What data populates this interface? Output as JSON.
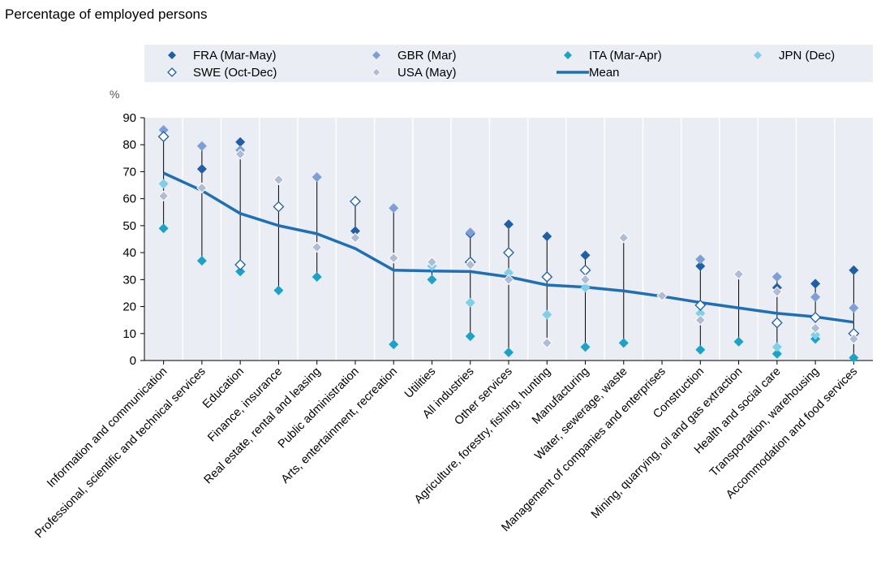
{
  "subtitle": "Percentage of employed persons",
  "chart_data": {
    "type": "scatter",
    "title": "",
    "ylabel": "%",
    "xlabel": "",
    "ylim": [
      0,
      90
    ],
    "yticks": [
      0,
      10,
      20,
      30,
      40,
      50,
      60,
      70,
      80,
      90
    ],
    "grid": "vertical",
    "legend_position": "top",
    "categories": [
      "Information and communication",
      "Professional, scientific and technical services",
      "Education",
      "Finance, insurance",
      "Real estate, rental and leasing",
      "Public administration",
      "Arts, entertainment, recreation",
      "Utilities",
      "All industries",
      "Other services",
      "Agriculture, forestry, fishing, hunting",
      "Manufacturing",
      "Water, sewerage, waste",
      "Management of companies and enterprises",
      "Construction",
      "Mining, quarrying, oil and gas extraction",
      "Health and social care",
      "Transportation, warehousing",
      "Accommodation and food services"
    ],
    "series": [
      {
        "name": "FRA (Mar-May)",
        "marker": "filled-diamond",
        "color": "#1f5fa8",
        "values": [
          null,
          71,
          81,
          null,
          null,
          48,
          null,
          null,
          47,
          50.5,
          46,
          39,
          null,
          null,
          35,
          null,
          27,
          28.5,
          33.5
        ]
      },
      {
        "name": "GBR (Mar)",
        "marker": "filled-diamond",
        "color": "#7b9fd6",
        "values": [
          85.5,
          79.5,
          78,
          null,
          68,
          null,
          56.5,
          null,
          47.5,
          null,
          null,
          null,
          null,
          null,
          37.5,
          null,
          31,
          23.5,
          19.5
        ]
      },
      {
        "name": "ITA (Mar-Apr)",
        "marker": "filled-diamond",
        "color": "#1aa3c9",
        "values": [
          49,
          37,
          33,
          26,
          31,
          null,
          6,
          30,
          9,
          3,
          null,
          5,
          6.5,
          null,
          4,
          7,
          2.5,
          8,
          1
        ]
      },
      {
        "name": "JPN (Dec)",
        "marker": "filled-diamond",
        "color": "#7dd0e8",
        "values": [
          65.5,
          null,
          null,
          null,
          null,
          null,
          null,
          35,
          21.5,
          32.5,
          17,
          27,
          null,
          null,
          17.5,
          null,
          5,
          9.5,
          null
        ]
      },
      {
        "name": "SWE (Oct-Dec)",
        "marker": "hollow-diamond",
        "color": "#1f5fa8",
        "values": [
          83,
          null,
          35.5,
          57,
          null,
          59,
          null,
          null,
          36.5,
          40,
          31,
          33.5,
          null,
          null,
          20.5,
          null,
          14,
          16,
          10
        ]
      },
      {
        "name": "USA (May)",
        "marker": "grey-diamond",
        "color": "#b0bbd6",
        "values": [
          61,
          64,
          76.5,
          67,
          42,
          45.5,
          38,
          36.5,
          35.5,
          30,
          6.5,
          30,
          45.5,
          24,
          15,
          32,
          25.5,
          12,
          8
        ]
      },
      {
        "name": "Mean",
        "marker": "line",
        "color": "#1f6fb5",
        "values": [
          69.5,
          63,
          54.5,
          50,
          47,
          41.5,
          33.5,
          33.2,
          33,
          31,
          28,
          27.2,
          25.8,
          23.8,
          21.5,
          19.5,
          17.5,
          16.2,
          14.2
        ]
      }
    ]
  }
}
